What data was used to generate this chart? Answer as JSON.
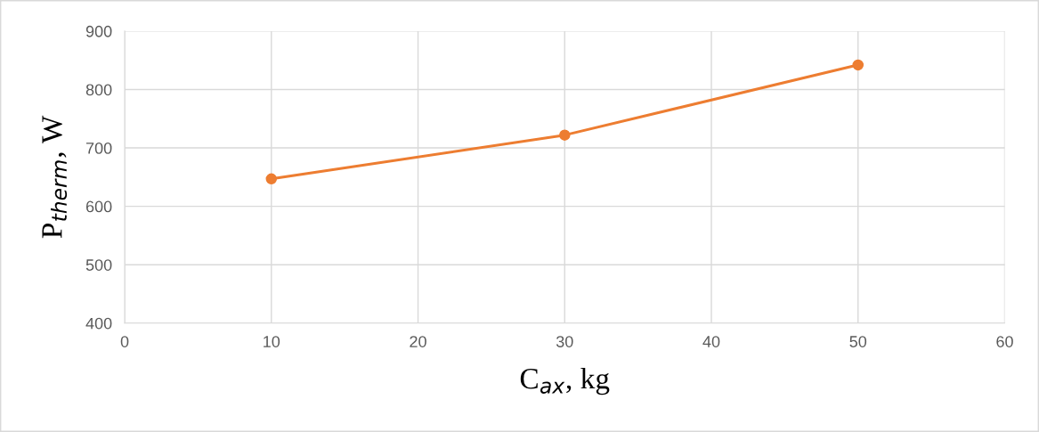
{
  "chart_data": {
    "type": "line",
    "xlabel": "C$_{ax}$, kg",
    "ylabel": "P$_{therm}$, W",
    "x": [
      10,
      30,
      50
    ],
    "series": [
      {
        "color": "#ed7d31",
        "values": [
          647,
          722,
          842
        ]
      }
    ],
    "xlim": [
      0,
      60
    ],
    "xticks": [
      0,
      10,
      20,
      30,
      40,
      50,
      60
    ],
    "ylim": [
      400,
      900
    ],
    "yticks": [
      400,
      500,
      600,
      700,
      800,
      900
    ],
    "grid": true,
    "marker": "circle",
    "line_style": "solid",
    "legend": false
  }
}
